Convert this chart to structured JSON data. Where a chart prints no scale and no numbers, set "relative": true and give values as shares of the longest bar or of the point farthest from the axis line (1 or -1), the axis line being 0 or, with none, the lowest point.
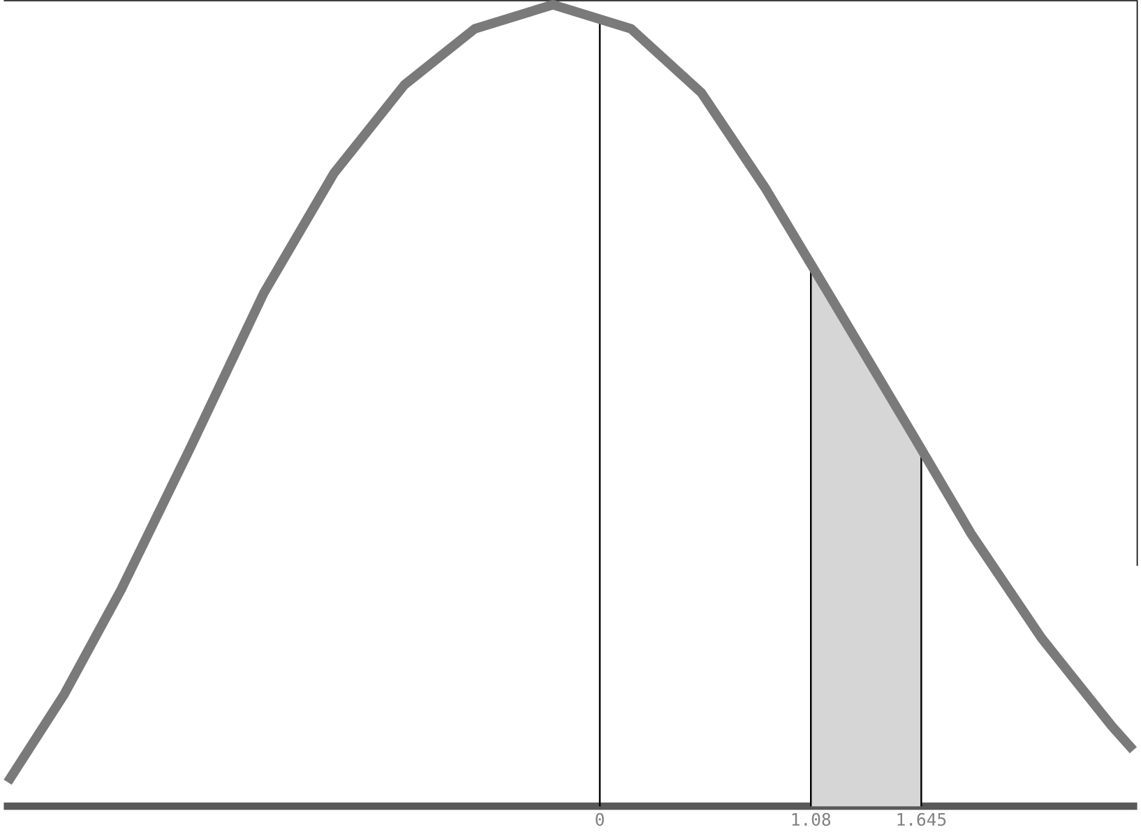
{
  "chart_data": {
    "type": "line",
    "relative": true,
    "series": [
      {
        "color": "#7a7a7a",
        "x": [
          -3.03,
          -2.74,
          -2.45,
          -2.09,
          -1.72,
          -1.36,
          -1.0,
          -0.64,
          -0.24,
          0.16,
          0.52,
          0.85,
          1.17,
          1.61,
          1.9,
          2.26,
          2.62,
          2.73
        ],
        "values": [
          0.03,
          0.14,
          0.27,
          0.45,
          0.64,
          0.79,
          0.9,
          0.97,
          1,
          0.97,
          0.89,
          0.77,
          0.64,
          0.46,
          0.34,
          0.21,
          0.1,
          0.07
        ]
      },
      {
        "type": "area",
        "color": "#d6d6d6",
        "x": [
          1.08,
          1.17,
          1.61,
          1.645
        ],
        "values": [
          0.68,
          0.64,
          0.46,
          0.45
        ]
      }
    ],
    "xlim": [
      -3.05,
      2.75
    ],
    "xticks": [
      0,
      {
        "value": 1.08,
        "label": "1.08"
      },
      1.645
    ],
    "ref_lines": [
      {
        "axis": "x",
        "value": 0,
        "color": "#000000"
      },
      {
        "axis": "x",
        "value": 1.08,
        "color": "#000000"
      },
      {
        "axis": "x",
        "value": 1.645,
        "color": "#000000"
      }
    ],
    "grid": false,
    "marker": "none",
    "line_style": "solid"
  }
}
